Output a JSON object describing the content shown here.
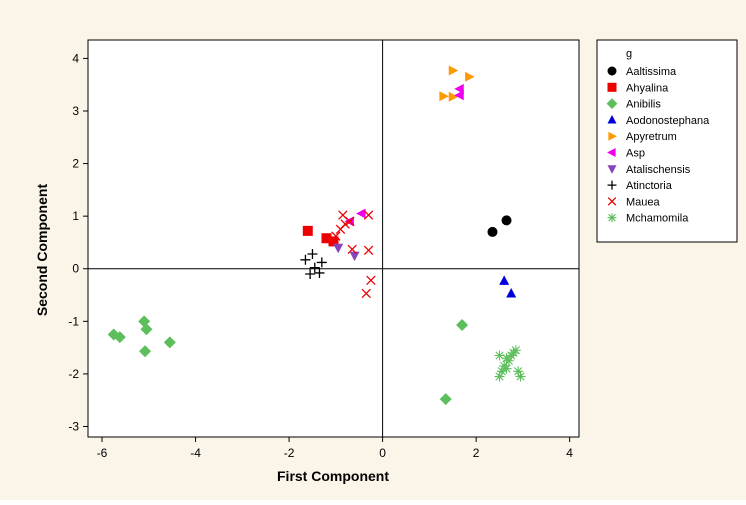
{
  "chart_data": {
    "type": "scatter",
    "xlabel": "First Component",
    "ylabel": "Second Component",
    "xlim": [
      -6.3,
      4.2
    ],
    "ylim": [
      -3.2,
      4.35
    ],
    "x_ticks": [
      -6,
      -4,
      -2,
      0,
      2,
      4
    ],
    "x_tick_labels": [
      "-6",
      "-4",
      "-2",
      "0",
      "2",
      "4"
    ],
    "y_ticks": [
      -3,
      -2,
      -1,
      0,
      1,
      2,
      3,
      4
    ],
    "y_tick_labels": [
      "-3",
      "-2",
      "-1",
      "0",
      "1",
      "2",
      "3",
      "4"
    ],
    "reference_lines": {
      "x": 0,
      "y": 0
    },
    "grid": false,
    "legend_placement": "right",
    "legend_title": "g",
    "colors": {
      "figure_background": "#fbf5e9",
      "plot_background": "#ffffff",
      "frame": "#000000"
    },
    "series": [
      {
        "name": "Aaltissima",
        "marker": "circle",
        "color": "#000000",
        "points": [
          [
            2.35,
            0.7
          ],
          [
            2.65,
            0.92
          ]
        ]
      },
      {
        "name": "Ahyalina",
        "marker": "square",
        "color": "#ee0000",
        "points": [
          [
            -1.6,
            0.72
          ],
          [
            -1.2,
            0.58
          ],
          [
            -1.05,
            0.52
          ]
        ]
      },
      {
        "name": "Anibilis",
        "marker": "diamond",
        "color": "#5cbf5c",
        "points": [
          [
            -5.75,
            -1.25
          ],
          [
            -5.62,
            -1.3
          ],
          [
            -5.1,
            -1.0
          ],
          [
            -5.05,
            -1.15
          ],
          [
            -5.08,
            -1.57
          ],
          [
            -4.55,
            -1.4
          ],
          [
            1.7,
            -1.07
          ],
          [
            1.35,
            -2.48
          ]
        ]
      },
      {
        "name": "Aodonostephana",
        "marker": "triangle-up",
        "color": "#0000dd",
        "points": [
          [
            2.6,
            -0.23
          ],
          [
            2.75,
            -0.47
          ]
        ]
      },
      {
        "name": "Apyretrum",
        "marker": "triangle-right",
        "color": "#ff9900",
        "points": [
          [
            1.3,
            3.28
          ],
          [
            1.5,
            3.27
          ],
          [
            1.5,
            3.77
          ],
          [
            1.85,
            3.65
          ]
        ]
      },
      {
        "name": "Asp",
        "marker": "triangle-left",
        "color": "#ee00ee",
        "points": [
          [
            1.65,
            3.3
          ],
          [
            1.65,
            3.42
          ],
          [
            -0.45,
            1.05
          ],
          [
            -0.7,
            0.9
          ]
        ]
      },
      {
        "name": "Atalischensis",
        "marker": "triangle-down",
        "color": "#8844bb",
        "points": [
          [
            -0.95,
            0.4
          ],
          [
            -0.6,
            0.25
          ]
        ]
      },
      {
        "name": "Atinctoria",
        "marker": "plus",
        "color": "#000000",
        "points": [
          [
            -1.65,
            0.17
          ],
          [
            -1.5,
            0.28
          ],
          [
            -1.3,
            0.12
          ],
          [
            -1.45,
            0.02
          ],
          [
            -1.55,
            -0.1
          ],
          [
            -1.35,
            -0.08
          ]
        ]
      },
      {
        "name": "Mauea",
        "marker": "x",
        "color": "#ee0000",
        "points": [
          [
            -0.85,
            1.02
          ],
          [
            -0.3,
            1.02
          ],
          [
            -0.7,
            0.9
          ],
          [
            -0.8,
            0.85
          ],
          [
            -0.9,
            0.75
          ],
          [
            -1.0,
            0.62
          ],
          [
            -0.65,
            0.37
          ],
          [
            -0.3,
            0.35
          ],
          [
            -0.25,
            -0.22
          ],
          [
            -0.35,
            -0.47
          ]
        ]
      },
      {
        "name": "Mchamomila",
        "marker": "asterisk",
        "color": "#5cbf5c",
        "points": [
          [
            2.5,
            -1.65
          ],
          [
            2.65,
            -1.7
          ],
          [
            2.8,
            -1.6
          ],
          [
            2.85,
            -1.55
          ],
          [
            2.7,
            -1.75
          ],
          [
            2.6,
            -1.85
          ],
          [
            2.55,
            -1.95
          ],
          [
            2.5,
            -2.05
          ],
          [
            2.65,
            -1.9
          ],
          [
            2.9,
            -1.95
          ],
          [
            2.95,
            -2.05
          ],
          [
            2.75,
            -1.65
          ]
        ]
      }
    ]
  }
}
